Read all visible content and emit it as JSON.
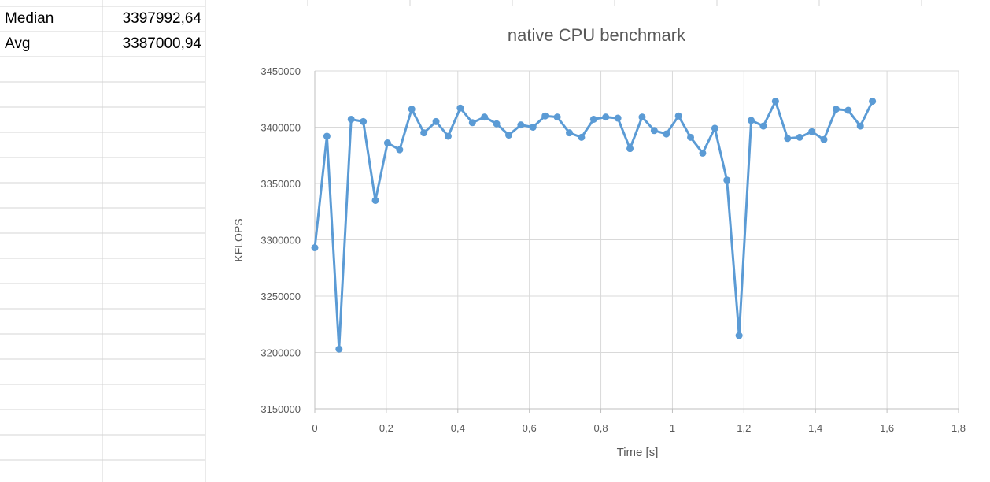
{
  "sheet": {
    "rows": [
      {
        "label": "Median",
        "value": "3397992,64"
      },
      {
        "label": "Avg",
        "value": "3387000,94"
      }
    ]
  },
  "chart_data": {
    "type": "line",
    "title": "native CPU benchmark",
    "xlabel": "Time [s]",
    "ylabel": "KFLOPS",
    "xlim": [
      0,
      1.8
    ],
    "ylim": [
      3150000,
      3450000
    ],
    "x_ticks": [
      "0",
      "0,2",
      "0,4",
      "0,6",
      "0,8",
      "1",
      "1,2",
      "1,4",
      "1,6",
      "1,8"
    ],
    "y_ticks": [
      "3150000",
      "3200000",
      "3250000",
      "3300000",
      "3350000",
      "3400000",
      "3450000"
    ],
    "grid": true,
    "color": "#5b9bd5",
    "series": [
      {
        "x": [
          0,
          0.0339,
          0.0678,
          0.1017,
          0.1356,
          0.1695,
          0.2034,
          0.2373,
          0.2712,
          0.3051,
          0.339,
          0.3729,
          0.4068,
          0.4407,
          0.4746,
          0.5085,
          0.5424,
          0.5763,
          0.6102,
          0.6441,
          0.678,
          0.7119,
          0.7458,
          0.7797,
          0.8136,
          0.8475,
          0.8814,
          0.9153,
          0.9492,
          0.9831,
          1.017,
          1.0508,
          1.0847,
          1.1186,
          1.1525,
          1.1864,
          1.2203,
          1.2542,
          1.2881,
          1.322,
          1.3559,
          1.3898,
          1.4237,
          1.4576,
          1.4915,
          1.5254,
          1.5593
        ],
        "y": [
          3293000,
          3392000,
          3203000,
          3407000,
          3405000,
          3335000,
          3386000,
          3380000,
          3416000,
          3395000,
          3405000,
          3392000,
          3417000,
          3404000,
          3409000,
          3403000,
          3393000,
          3402000,
          3400000,
          3410000,
          3409000,
          3395000,
          3391000,
          3407000,
          3409000,
          3408000,
          3381000,
          3409000,
          3397000,
          3394000,
          3410000,
          3391000,
          3377000,
          3399000,
          3353000,
          3215000,
          3406000,
          3401000,
          3423000,
          3390000,
          3391000,
          3396000,
          3389000,
          3416000,
          3415000,
          3401000,
          3423000
        ]
      }
    ]
  }
}
